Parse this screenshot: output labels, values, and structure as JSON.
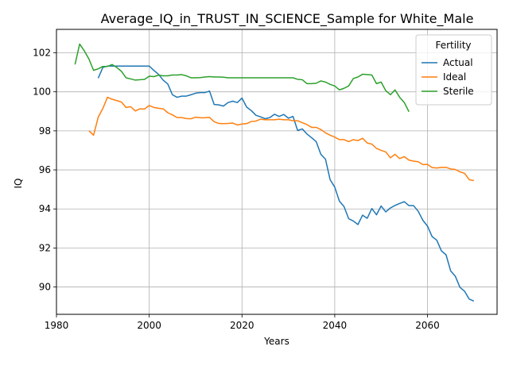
{
  "chart_data": {
    "type": "line",
    "title": "Average_IQ_in_TRUST_IN_SCIENCE_Sample for White_Male",
    "xlabel": "Years",
    "ylabel": "IQ",
    "xlim": [
      1980,
      2075
    ],
    "ylim": [
      88.6,
      103.2
    ],
    "xticks": [
      1980,
      2000,
      2020,
      2040,
      2060
    ],
    "yticks": [
      90,
      92,
      94,
      96,
      98,
      100,
      102
    ],
    "grid": true,
    "legend": {
      "title": "Fertility",
      "placement": "top-right"
    },
    "series": [
      {
        "name": "Actual",
        "color": "#1f77b4",
        "x": [
          1989,
          1990,
          1991,
          1992,
          1993,
          1994,
          1995,
          1996,
          1997,
          1998,
          1999,
          2000,
          2001,
          2002,
          2003,
          2004,
          2005,
          2006,
          2007,
          2008,
          2009,
          2010,
          2011,
          2012,
          2013,
          2014,
          2015,
          2016,
          2017,
          2018,
          2019,
          2020,
          2021,
          2022,
          2023,
          2024,
          2025,
          2026,
          2027,
          2028,
          2029,
          2030,
          2031,
          2032,
          2033,
          2034,
          2035,
          2036,
          2037,
          2038,
          2039,
          2040,
          2041,
          2042,
          2043,
          2044,
          2045,
          2046,
          2047,
          2048,
          2049,
          2050,
          2051,
          2052,
          2053,
          2054,
          2055,
          2056,
          2057,
          2058,
          2059,
          2060,
          2061,
          2062,
          2063,
          2064,
          2065,
          2066,
          2067,
          2068,
          2069,
          2070
        ],
        "values": [
          100.7,
          101.25,
          101.32,
          101.32,
          101.32,
          101.32,
          101.32,
          101.32,
          101.32,
          101.32,
          101.32,
          101.32,
          101.1,
          100.9,
          100.6,
          100.4,
          99.85,
          99.72,
          99.78,
          99.78,
          99.85,
          99.93,
          99.96,
          99.96,
          100.04,
          99.35,
          99.33,
          99.27,
          99.45,
          99.52,
          99.45,
          99.68,
          99.22,
          99.04,
          98.8,
          98.72,
          98.62,
          98.68,
          98.85,
          98.74,
          98.84,
          98.65,
          98.74,
          98.02,
          98.1,
          97.84,
          97.65,
          97.45,
          96.8,
          96.55,
          95.5,
          95.12,
          94.4,
          94.12,
          93.5,
          93.38,
          93.2,
          93.68,
          93.52,
          94.02,
          93.7,
          94.15,
          93.85,
          94.05,
          94.18,
          94.28,
          94.37,
          94.17,
          94.17,
          93.88,
          93.42,
          93.12,
          92.58,
          92.4,
          91.85,
          91.65,
          90.82,
          90.55,
          89.98,
          89.78,
          89.38,
          89.28
        ]
      },
      {
        "name": "Ideal",
        "color": "#ff7f0e",
        "x": [
          1987,
          1988,
          1989,
          1990,
          1991,
          1992,
          1993,
          1994,
          1995,
          1996,
          1997,
          1998,
          1999,
          2000,
          2001,
          2002,
          2003,
          2004,
          2005,
          2006,
          2007,
          2008,
          2009,
          2010,
          2011,
          2012,
          2013,
          2014,
          2015,
          2016,
          2017,
          2018,
          2019,
          2020,
          2021,
          2022,
          2023,
          2024,
          2025,
          2026,
          2027,
          2028,
          2029,
          2030,
          2031,
          2032,
          2033,
          2034,
          2035,
          2036,
          2037,
          2038,
          2039,
          2040,
          2041,
          2042,
          2043,
          2044,
          2045,
          2046,
          2047,
          2048,
          2049,
          2050,
          2051,
          2052,
          2053,
          2054,
          2055,
          2056,
          2057,
          2058,
          2059,
          2060,
          2061,
          2062,
          2063,
          2064,
          2065,
          2066,
          2067,
          2068,
          2069,
          2070
        ],
        "values": [
          98.0,
          97.78,
          98.7,
          99.15,
          99.72,
          99.62,
          99.55,
          99.48,
          99.2,
          99.24,
          99.02,
          99.13,
          99.12,
          99.3,
          99.2,
          99.16,
          99.13,
          98.93,
          98.82,
          98.68,
          98.68,
          98.63,
          98.62,
          98.7,
          98.67,
          98.67,
          98.69,
          98.47,
          98.38,
          98.37,
          98.38,
          98.4,
          98.3,
          98.35,
          98.37,
          98.48,
          98.5,
          98.6,
          98.57,
          98.57,
          98.57,
          98.6,
          98.57,
          98.57,
          98.52,
          98.52,
          98.42,
          98.32,
          98.18,
          98.18,
          98.07,
          97.9,
          97.78,
          97.68,
          97.55,
          97.55,
          97.45,
          97.55,
          97.5,
          97.62,
          97.38,
          97.32,
          97.1,
          97.0,
          96.92,
          96.62,
          96.8,
          96.58,
          96.68,
          96.5,
          96.45,
          96.42,
          96.27,
          96.28,
          96.12,
          96.1,
          96.13,
          96.13,
          96.05,
          96.02,
          95.9,
          95.82,
          95.5,
          95.45
        ]
      },
      {
        "name": "Sterile",
        "color": "#2ca02c",
        "x": [
          1984,
          1985,
          1986,
          1987,
          1988,
          1989,
          1990,
          1991,
          1992,
          1993,
          1994,
          1995,
          1996,
          1997,
          1998,
          1999,
          2000,
          2001,
          2002,
          2003,
          2004,
          2005,
          2006,
          2007,
          2008,
          2009,
          2010,
          2011,
          2012,
          2013,
          2014,
          2015,
          2016,
          2017,
          2018,
          2019,
          2020,
          2021,
          2022,
          2023,
          2024,
          2025,
          2026,
          2027,
          2028,
          2029,
          2030,
          2031,
          2032,
          2033,
          2034,
          2035,
          2036,
          2037,
          2038,
          2039,
          2040,
          2041,
          2042,
          2043,
          2044,
          2045,
          2046,
          2047,
          2048,
          2049,
          2050,
          2051,
          2052,
          2053,
          2054,
          2055,
          2056
        ],
        "values": [
          101.4,
          102.45,
          102.1,
          101.68,
          101.1,
          101.18,
          101.3,
          101.3,
          101.4,
          101.25,
          101.05,
          100.72,
          100.66,
          100.6,
          100.62,
          100.64,
          100.8,
          100.78,
          100.85,
          100.82,
          100.82,
          100.86,
          100.86,
          100.88,
          100.82,
          100.72,
          100.72,
          100.73,
          100.76,
          100.78,
          100.76,
          100.76,
          100.75,
          100.72,
          100.72,
          100.72,
          100.72,
          100.72,
          100.72,
          100.72,
          100.72,
          100.72,
          100.72,
          100.72,
          100.72,
          100.72,
          100.72,
          100.72,
          100.64,
          100.62,
          100.42,
          100.42,
          100.44,
          100.56,
          100.5,
          100.38,
          100.3,
          100.1,
          100.18,
          100.3,
          100.68,
          100.76,
          100.9,
          100.88,
          100.86,
          100.42,
          100.5,
          100.06,
          99.85,
          100.1,
          99.72,
          99.45,
          98.98
        ]
      }
    ]
  }
}
